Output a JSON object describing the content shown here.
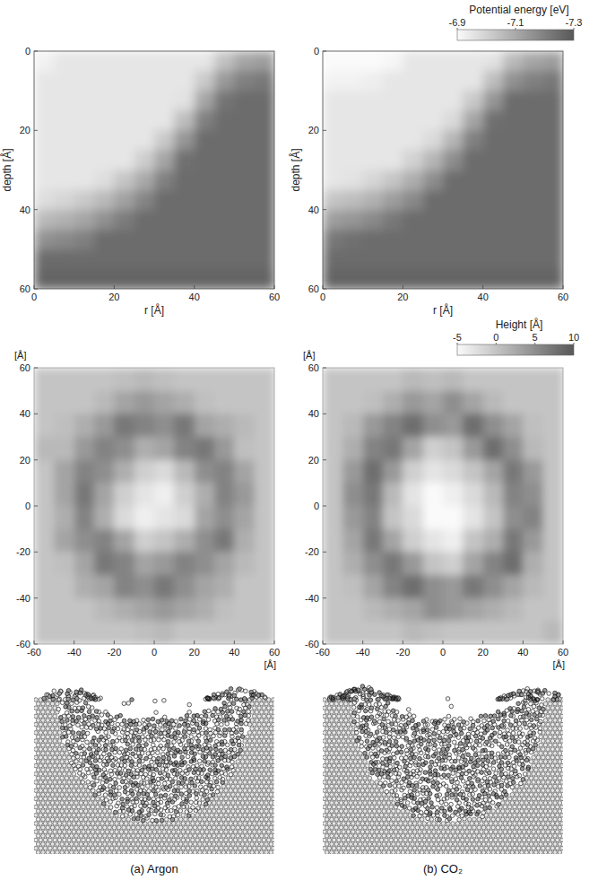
{
  "chart_data": [
    {
      "type": "heatmap",
      "x_label": "r [Å]",
      "y_label": "depth [Å]",
      "xlim": [
        0,
        60
      ],
      "ylim": [
        60,
        0
      ],
      "xticks": [
        0,
        20,
        40,
        60
      ],
      "yticks": [
        0,
        20,
        40,
        60
      ],
      "cells": [
        [
          -6.92,
          -6.95,
          -6.95,
          -6.95,
          -6.95,
          -6.95,
          -6.95,
          -6.95,
          -6.95,
          -7.04,
          -7.11,
          -7.13
        ],
        [
          -6.95,
          -6.95,
          -6.95,
          -6.95,
          -6.95,
          -6.95,
          -6.95,
          -6.95,
          -7.02,
          -7.14,
          -7.2,
          -7.22
        ],
        [
          -6.95,
          -6.95,
          -6.95,
          -6.95,
          -6.95,
          -6.95,
          -6.95,
          -6.96,
          -7.11,
          -7.23,
          -7.25,
          -7.25
        ],
        [
          -6.95,
          -6.95,
          -6.95,
          -6.95,
          -6.95,
          -6.95,
          -6.95,
          -7.05,
          -7.2,
          -7.25,
          -7.25,
          -7.25
        ],
        [
          -6.95,
          -6.95,
          -6.95,
          -6.95,
          -6.95,
          -6.95,
          -7.02,
          -7.15,
          -7.25,
          -7.25,
          -7.25,
          -7.25
        ],
        [
          -6.95,
          -6.95,
          -6.95,
          -6.95,
          -6.95,
          -7.01,
          -7.11,
          -7.24,
          -7.25,
          -7.25,
          -7.25,
          -7.25
        ],
        [
          -6.95,
          -6.95,
          -6.95,
          -6.97,
          -7.03,
          -7.1,
          -7.2,
          -7.25,
          -7.25,
          -7.25,
          -7.25,
          -7.25
        ],
        [
          -6.97,
          -6.99,
          -7.02,
          -7.06,
          -7.12,
          -7.19,
          -7.25,
          -7.25,
          -7.25,
          -7.25,
          -7.25,
          -7.25
        ],
        [
          -7.06,
          -7.08,
          -7.11,
          -7.16,
          -7.21,
          -7.25,
          -7.25,
          -7.25,
          -7.25,
          -7.25,
          -7.25,
          -7.25
        ],
        [
          -7.16,
          -7.18,
          -7.2,
          -7.25,
          -7.25,
          -7.25,
          -7.25,
          -7.25,
          -7.25,
          -7.25,
          -7.25,
          -7.25
        ],
        [
          -7.25,
          -7.25,
          -7.25,
          -7.25,
          -7.25,
          -7.25,
          -7.25,
          -7.25,
          -7.25,
          -7.25,
          -7.25,
          -7.25
        ],
        [
          -7.27,
          -7.27,
          -7.27,
          -7.27,
          -7.27,
          -7.27,
          -7.27,
          -7.27,
          -7.27,
          -7.27,
          -7.27,
          -7.27
        ]
      ]
    },
    {
      "type": "heatmap",
      "x_label": "r [Å]",
      "y_label": "depth [Å]",
      "xlim": [
        0,
        60
      ],
      "ylim": [
        60,
        0
      ],
      "xticks": [
        0,
        20,
        40,
        60
      ],
      "yticks": [
        0,
        20,
        40,
        60
      ],
      "cells": [
        [
          -6.89,
          -6.88,
          -6.89,
          -6.91,
          -6.95,
          -6.95,
          -6.95,
          -6.95,
          -6.96,
          -7.06,
          -7.11,
          -7.13
        ],
        [
          -6.92,
          -6.92,
          -6.93,
          -6.95,
          -6.95,
          -6.95,
          -6.95,
          -6.95,
          -7.05,
          -7.16,
          -7.2,
          -7.22
        ],
        [
          -6.95,
          -6.95,
          -6.95,
          -6.95,
          -6.95,
          -6.95,
          -6.95,
          -7.02,
          -7.15,
          -7.25,
          -7.25,
          -7.25
        ],
        [
          -6.95,
          -6.95,
          -6.95,
          -6.95,
          -6.95,
          -6.95,
          -6.98,
          -7.11,
          -7.24,
          -7.25,
          -7.25,
          -7.25
        ],
        [
          -6.95,
          -6.95,
          -6.95,
          -6.95,
          -6.95,
          -6.98,
          -7.07,
          -7.2,
          -7.25,
          -7.25,
          -7.25,
          -7.25
        ],
        [
          -6.95,
          -6.95,
          -6.95,
          -6.95,
          -7.0,
          -7.07,
          -7.17,
          -7.25,
          -7.25,
          -7.25,
          -7.25,
          -7.25
        ],
        [
          -6.95,
          -6.96,
          -6.99,
          -7.03,
          -7.09,
          -7.17,
          -7.25,
          -7.25,
          -7.25,
          -7.25,
          -7.25,
          -7.25
        ],
        [
          -7.03,
          -7.05,
          -7.08,
          -7.13,
          -7.18,
          -7.25,
          -7.25,
          -7.25,
          -7.25,
          -7.25,
          -7.25,
          -7.25
        ],
        [
          -7.13,
          -7.15,
          -7.18,
          -7.22,
          -7.25,
          -7.25,
          -7.25,
          -7.25,
          -7.25,
          -7.25,
          -7.25,
          -7.25
        ],
        [
          -7.22,
          -7.24,
          -7.25,
          -7.25,
          -7.25,
          -7.25,
          -7.25,
          -7.25,
          -7.25,
          -7.25,
          -7.25,
          -7.25
        ],
        [
          -7.25,
          -7.25,
          -7.25,
          -7.25,
          -7.25,
          -7.25,
          -7.25,
          -7.25,
          -7.25,
          -7.25,
          -7.25,
          -7.25
        ],
        [
          -7.27,
          -7.27,
          -7.27,
          -7.27,
          -7.27,
          -7.27,
          -7.27,
          -7.27,
          -7.27,
          -7.27,
          -7.27,
          -7.27
        ]
      ],
      "colorbar": {
        "title": "Potential energy [eV]",
        "range": [
          -6.9,
          -7.3
        ],
        "ticks": [
          -6.9,
          -7.1,
          -7.3
        ]
      }
    },
    {
      "type": "heatmap",
      "x_label": "[Å]",
      "y_label": "[Å]",
      "xlim": [
        -60,
        60
      ],
      "ylim": [
        -60,
        60
      ],
      "xticks": [
        -60,
        -40,
        -20,
        0,
        20,
        40,
        60
      ],
      "yticks": [
        -60,
        -40,
        -20,
        0,
        20,
        40,
        60
      ],
      "cells": [
        [
          0,
          0,
          0,
          0,
          0.5,
          1,
          0.5,
          0,
          0,
          0,
          0,
          0
        ],
        [
          0,
          0,
          0,
          1,
          3,
          4,
          3,
          2,
          0.5,
          0,
          0,
          0
        ],
        [
          0,
          0.5,
          2,
          4,
          7,
          6,
          5,
          7,
          3,
          2,
          1,
          0
        ],
        [
          1,
          1,
          4,
          6,
          5,
          2,
          3,
          6,
          7,
          4,
          0.5,
          0
        ],
        [
          0,
          3,
          6,
          5,
          2,
          -1,
          -2,
          1,
          5,
          6,
          3,
          0
        ],
        [
          0,
          3,
          7,
          3,
          -1,
          -3,
          -4,
          -1,
          2,
          6,
          4,
          0
        ],
        [
          0,
          2,
          6,
          2,
          -2,
          -4,
          -3,
          -2,
          3,
          5,
          3,
          0
        ],
        [
          0,
          3,
          5,
          6,
          3,
          -1,
          0,
          2,
          5,
          7,
          2,
          0
        ],
        [
          0,
          0.5,
          3,
          7,
          6,
          3,
          4,
          6,
          5,
          3,
          1,
          0
        ],
        [
          0,
          0,
          2,
          3,
          6,
          5,
          7,
          5,
          3,
          2,
          0,
          0
        ],
        [
          0,
          0,
          0,
          1,
          2,
          3,
          4,
          3,
          2,
          0.5,
          0,
          0
        ],
        [
          0,
          0,
          0,
          0,
          0,
          0.5,
          1,
          0,
          0,
          0,
          0,
          0
        ]
      ]
    },
    {
      "type": "heatmap",
      "x_label": "[Å]",
      "y_label": "[Å]",
      "xlim": [
        -60,
        60
      ],
      "ylim": [
        -60,
        60
      ],
      "xticks": [
        -60,
        -40,
        -20,
        0,
        20,
        40,
        60
      ],
      "yticks": [
        -60,
        -40,
        -20,
        0,
        20,
        40,
        60
      ],
      "cells": [
        [
          0,
          0,
          0,
          0,
          1,
          0.5,
          1,
          0,
          0,
          0,
          0,
          0
        ],
        [
          0,
          0,
          0.5,
          2,
          4,
          3,
          5,
          3,
          1,
          0,
          0,
          0
        ],
        [
          0,
          1,
          4,
          6,
          8,
          5,
          4,
          8,
          5,
          3,
          0.5,
          0
        ],
        [
          0,
          2,
          6,
          7,
          3,
          -1,
          0,
          4,
          8,
          5,
          1,
          0
        ],
        [
          0,
          4,
          8,
          4,
          -1,
          -3,
          -2,
          0,
          3,
          7,
          4,
          0
        ],
        [
          0,
          5,
          7,
          1,
          -3,
          -5,
          -4,
          -2,
          1,
          6,
          5,
          0
        ],
        [
          0,
          4,
          6,
          0,
          -2,
          -5,
          -5,
          -3,
          0,
          5,
          6,
          0
        ],
        [
          0,
          3,
          7,
          3,
          -1,
          -3,
          -4,
          0,
          2,
          7,
          4,
          0
        ],
        [
          0,
          2,
          5,
          7,
          4,
          0,
          -1,
          3,
          6,
          8,
          2,
          0
        ],
        [
          0,
          0.5,
          3,
          6,
          8,
          5,
          4,
          7,
          5,
          3,
          1,
          0
        ],
        [
          0,
          0,
          1,
          2,
          3,
          5,
          4,
          3,
          2,
          1,
          0,
          0
        ],
        [
          0,
          0,
          0,
          0,
          1,
          0.5,
          0,
          0,
          0,
          0,
          0,
          1
        ]
      ],
      "colorbar": {
        "title": "Height [Å]",
        "range": [
          -5,
          10
        ],
        "ticks": [
          -5,
          0,
          5,
          10
        ]
      }
    }
  ],
  "captions": [
    "(a) Argon",
    "(b) CO₂"
  ]
}
